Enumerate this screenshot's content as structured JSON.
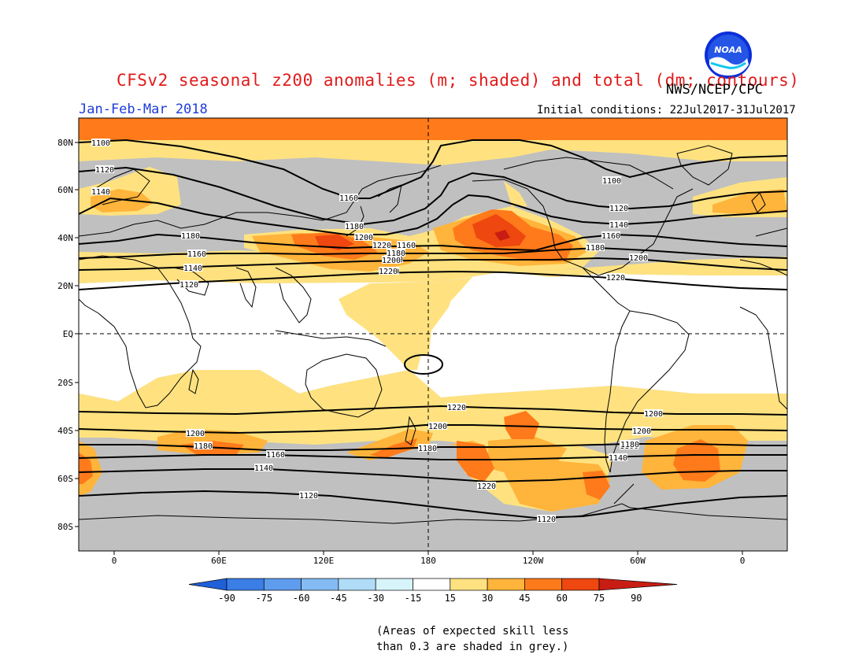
{
  "header": {
    "title": "CFSv2 seasonal z200 anomalies (m; shaded) and total (dm; contours)",
    "agency": "NWS/NCEP/CPC",
    "season": "Jan-Feb-Mar 2018",
    "initial_conditions": "Initial conditions: 22Jul2017-31Jul2017",
    "logo_text": "NOAA"
  },
  "map": {
    "lat_labels": [
      "80N",
      "60N",
      "40N",
      "20N",
      "EQ",
      "20S",
      "40S",
      "60S",
      "80S"
    ],
    "lon_labels": [
      "0",
      "60E",
      "120E",
      "180",
      "120W",
      "60W",
      "0"
    ],
    "contour_labels": [
      {
        "text": "1100",
        "level": 1100
      },
      {
        "text": "1120",
        "level": 1120
      },
      {
        "text": "1140",
        "level": 1140
      },
      {
        "text": "1160",
        "level": 1160
      },
      {
        "text": "1180",
        "level": 1180
      },
      {
        "text": "1200",
        "level": 1200
      },
      {
        "text": "1220",
        "level": 1220
      },
      {
        "text": "1220",
        "level": 1220
      },
      {
        "text": "1200",
        "level": 1200
      },
      {
        "text": "1180",
        "level": 1180
      },
      {
        "text": "1160",
        "level": 1160
      },
      {
        "text": "1140",
        "level": 1140
      },
      {
        "text": "1120",
        "level": 1120
      },
      {
        "text": "1100",
        "level": 1100
      },
      {
        "text": "1120",
        "level": 1120
      },
      {
        "text": "1140",
        "level": 1140
      },
      {
        "text": "1160",
        "level": 1160
      },
      {
        "text": "1180",
        "level": 1180
      },
      {
        "text": "1200",
        "level": 1200
      },
      {
        "text": "1220",
        "level": 1220
      },
      {
        "text": "1160",
        "level": 1160
      },
      {
        "text": "1180",
        "level": 1180
      },
      {
        "text": "1200",
        "level": 1200
      },
      {
        "text": "1220",
        "level": 1220
      },
      {
        "text": "1220",
        "level": 1220
      },
      {
        "text": "1200",
        "level": 1200
      },
      {
        "text": "1180",
        "level": 1180
      },
      {
        "text": "1160",
        "level": 1160
      },
      {
        "text": "1140",
        "level": 1140
      },
      {
        "text": "1120",
        "level": 1120
      },
      {
        "text": "1180",
        "level": 1180
      },
      {
        "text": "1200",
        "level": 1200
      },
      {
        "text": "1220",
        "level": 1220
      },
      {
        "text": "1140",
        "level": 1140
      },
      {
        "text": "1160",
        "level": 1160
      },
      {
        "text": "1180",
        "level": 1180
      },
      {
        "text": "1200",
        "level": 1200
      },
      {
        "text": "1220",
        "level": 1220
      },
      {
        "text": "1120",
        "level": 1120
      },
      {
        "text": "1180",
        "level": 1180
      },
      {
        "text": "1200",
        "level": 1200
      }
    ],
    "colors": {
      "skill_grey": "#c0c0c0",
      "a15_30": "#ffe27f",
      "a30_45": "#ffb43b",
      "a45_60": "#ff7a1a",
      "a60_75": "#ee4710",
      "a75_90": "#c81d12",
      "coast": "#000000",
      "contour": "#000000"
    }
  },
  "colorbar": {
    "ticks": [
      "-90",
      "-75",
      "-60",
      "-45",
      "-30",
      "-15",
      "15",
      "30",
      "45",
      "60",
      "75",
      "90"
    ],
    "colors": [
      "#1f5fd8",
      "#3a7ee6",
      "#5e9cee",
      "#84bbf4",
      "#b0dcf8",
      "#d7f4fb",
      "#ffffff",
      "#ffe27f",
      "#ffb43b",
      "#ff7a1a",
      "#ee4710",
      "#c81d12"
    ]
  },
  "note": {
    "line1": "(Areas of expected skill less",
    "line2": "than 0.3 are shaded in grey.)"
  }
}
